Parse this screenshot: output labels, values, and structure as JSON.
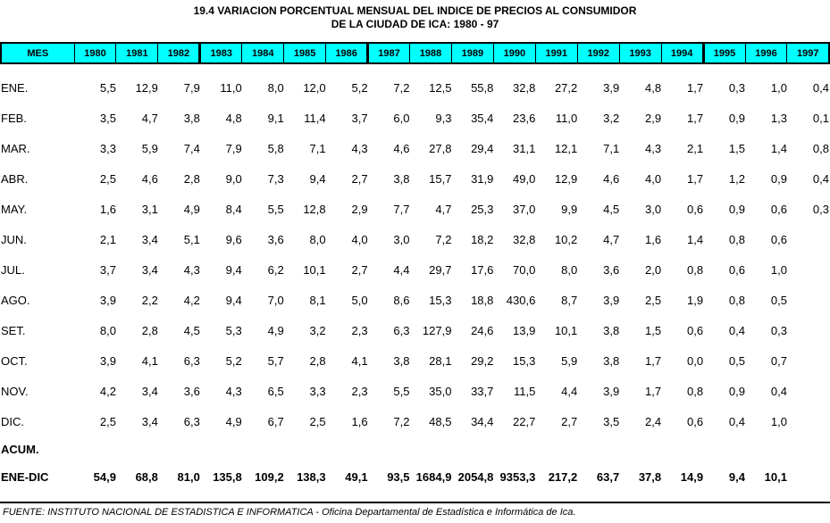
{
  "title_line1": "19.4 VARIACION PORCENTUAL MENSUAL DEL INDICE DE PRECIOS AL CONSUMIDOR",
  "title_line2": "DE LA CIUDAD DE ICA: 1980 - 97",
  "footer": "FUENTE: INSTITUTO NACIONAL DE ESTADISTICA E INFORMATICA - Oficina Departamental de Estadística e Informática de Ica.",
  "colors": {
    "header_bg": "#00ffff",
    "border": "#000000",
    "text": "#000000"
  },
  "table": {
    "columns": [
      "MES",
      "1980",
      "1981",
      "1982",
      "1983",
      "1984",
      "1985",
      "1986",
      "1987",
      "1988",
      "1989",
      "1990",
      "1991",
      "1992",
      "1993",
      "1994",
      "1995",
      "1996",
      "1997"
    ],
    "rows": [
      {
        "label": "ENE.",
        "values": [
          "5,5",
          "12,9",
          "7,9",
          "11,0",
          "8,0",
          "12,0",
          "5,2",
          "7,2",
          "12,5",
          "55,8",
          "32,8",
          "27,2",
          "3,9",
          "4,8",
          "1,7",
          "0,3",
          "1,0",
          "0,4"
        ]
      },
      {
        "label": "FEB.",
        "values": [
          "3,5",
          "4,7",
          "3,8",
          "4,8",
          "9,1",
          "11,4",
          "3,7",
          "6,0",
          "9,3",
          "35,4",
          "23,6",
          "11,0",
          "3,2",
          "2,9",
          "1,7",
          "0,9",
          "1,3",
          "0,1"
        ]
      },
      {
        "label": "MAR.",
        "values": [
          "3,3",
          "5,9",
          "7,4",
          "7,9",
          "5,8",
          "7,1",
          "4,3",
          "4,6",
          "27,8",
          "29,4",
          "31,1",
          "12,1",
          "7,1",
          "4,3",
          "2,1",
          "1,5",
          "1,4",
          "0,8"
        ]
      },
      {
        "label": "ABR.",
        "values": [
          "2,5",
          "4,6",
          "2,8",
          "9,0",
          "7,3",
          "9,4",
          "2,7",
          "3,8",
          "15,7",
          "31,9",
          "49,0",
          "12,9",
          "4,6",
          "4,0",
          "1,7",
          "1,2",
          "0,9",
          "0,4"
        ]
      },
      {
        "label": "MAY.",
        "values": [
          "1,6",
          "3,1",
          "4,9",
          "8,4",
          "5,5",
          "12,8",
          "2,9",
          "7,7",
          "4,7",
          "25,3",
          "37,0",
          "9,9",
          "4,5",
          "3,0",
          "0,6",
          "0,9",
          "0,6",
          "0,3"
        ]
      },
      {
        "label": "JUN.",
        "values": [
          "2,1",
          "3,4",
          "5,1",
          "9,6",
          "3,6",
          "8,0",
          "4,0",
          "3,0",
          "7,2",
          "18,2",
          "32,8",
          "10,2",
          "4,7",
          "1,6",
          "1,4",
          "0,8",
          "0,6",
          ""
        ]
      },
      {
        "label": "JUL.",
        "values": [
          "3,7",
          "3,4",
          "4,3",
          "9,4",
          "6,2",
          "10,1",
          "2,7",
          "4,4",
          "29,7",
          "17,6",
          "70,0",
          "8,0",
          "3,6",
          "2,0",
          "0,8",
          "0,6",
          "1,0",
          ""
        ]
      },
      {
        "label": "AGO.",
        "values": [
          "3,9",
          "2,2",
          "4,2",
          "9,4",
          "7,0",
          "8,1",
          "5,0",
          "8,6",
          "15,3",
          "18,8",
          "430,6",
          "8,7",
          "3,9",
          "2,5",
          "1,9",
          "0,8",
          "0,5",
          ""
        ]
      },
      {
        "label": "SET.",
        "values": [
          "8,0",
          "2,8",
          "4,5",
          "5,3",
          "4,9",
          "3,2",
          "2,3",
          "6,3",
          "127,9",
          "24,6",
          "13,9",
          "10,1",
          "3,8",
          "1,5",
          "0,6",
          "0,4",
          "0,3",
          ""
        ]
      },
      {
        "label": "OCT.",
        "values": [
          "3,9",
          "4,1",
          "6,3",
          "5,2",
          "5,7",
          "2,8",
          "4,1",
          "3,8",
          "28,1",
          "29,2",
          "15,3",
          "5,9",
          "3,8",
          "1,7",
          "0,0",
          "0,5",
          "0,7",
          ""
        ]
      },
      {
        "label": "NOV.",
        "values": [
          "4,2",
          "3,4",
          "3,6",
          "4,3",
          "6,5",
          "3,3",
          "2,3",
          "5,5",
          "35,0",
          "33,7",
          "11,5",
          "4,4",
          "3,9",
          "1,7",
          "0,8",
          "0,9",
          "0,4",
          ""
        ]
      },
      {
        "label": "DIC.",
        "values": [
          "2,5",
          "3,4",
          "6,3",
          "4,9",
          "6,7",
          "2,5",
          "1,6",
          "7,2",
          "48,5",
          "34,4",
          "22,7",
          "2,7",
          "3,5",
          "2,4",
          "0,6",
          "0,4",
          "1,0",
          ""
        ]
      }
    ],
    "acum_label": "ACUM.",
    "total_row": {
      "label": "ENE-DIC",
      "values": [
        "54,9",
        "68,8",
        "81,0",
        "135,8",
        "109,2",
        "138,3",
        "49,1",
        "93,5",
        "1684,9",
        "2054,8",
        "9353,3",
        "217,2",
        "63,7",
        "37,8",
        "14,9",
        "9,4",
        "10,1",
        ""
      ]
    }
  }
}
